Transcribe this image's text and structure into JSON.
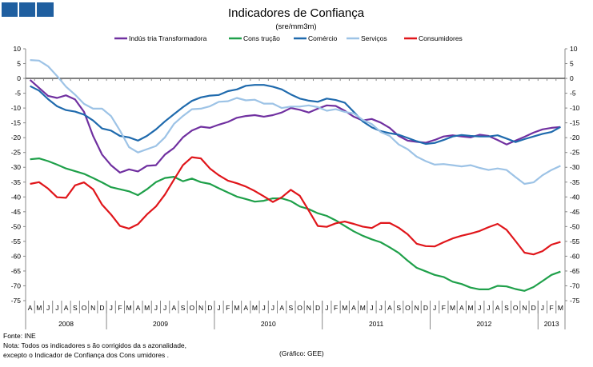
{
  "logo": {
    "color": "#1f5fa0"
  },
  "chart_data": {
    "type": "line",
    "title": "Indicadores de Confiança",
    "subtitle": "(sre/mm3m)",
    "xlabel": "",
    "ylabel": "",
    "ylim": [
      -75,
      10
    ],
    "yticks": [
      10,
      5,
      0,
      -5,
      -10,
      -15,
      -20,
      -25,
      -30,
      -35,
      -40,
      -45,
      -50,
      -55,
      -60,
      -65,
      -70,
      -75
    ],
    "legend_position": "top-center",
    "months": [
      "A",
      "M",
      "J",
      "J",
      "A",
      "S",
      "O",
      "N",
      "D",
      "J",
      "F",
      "M",
      "A",
      "M",
      "J",
      "J",
      "A",
      "S",
      "O",
      "N",
      "D",
      "J",
      "F",
      "M",
      "A",
      "M",
      "J",
      "J",
      "A",
      "S",
      "O",
      "N",
      "D",
      "J",
      "F",
      "M",
      "A",
      "M",
      "J",
      "J",
      "A",
      "S",
      "O",
      "N",
      "D",
      "J",
      "F",
      "M",
      "A",
      "M",
      "J",
      "J",
      "A",
      "S",
      "O",
      "N",
      "D",
      "J",
      "F",
      "M"
    ],
    "years": [
      {
        "label": "2008",
        "start": 0,
        "count": 9
      },
      {
        "label": "2009",
        "start": 9,
        "count": 12
      },
      {
        "label": "2010",
        "start": 21,
        "count": 12
      },
      {
        "label": "2011",
        "start": 33,
        "count": 12
      },
      {
        "label": "2012",
        "start": 45,
        "count": 12
      },
      {
        "label": "2013",
        "start": 57,
        "count": 3
      }
    ],
    "series": [
      {
        "name": "Indús tria Transformadora",
        "color": "#7030a0",
        "values": [
          -0.5,
          -3.2,
          -5.9,
          -6.6,
          -5.7,
          -7.1,
          -11.3,
          -19.4,
          -25.7,
          -29.3,
          -31.8,
          -30.7,
          -31.4,
          -29.5,
          -29.3,
          -25.7,
          -23.5,
          -19.9,
          -17.6,
          -16.3,
          -16.7,
          -15.6,
          -14.7,
          -13.3,
          -12.7,
          -12.4,
          -12.9,
          -12.4,
          -11.5,
          -10,
          -10.6,
          -11.5,
          -10.2,
          -9.1,
          -9.3,
          -10.9,
          -12.9,
          -14.2,
          -13.7,
          -14.9,
          -16.7,
          -19.4,
          -21,
          -21.4,
          -21.7,
          -20.8,
          -19.6,
          -19.2,
          -19.6,
          -19.9,
          -19,
          -19.4,
          -20.8,
          -22.3,
          -21,
          -19.7,
          -18.3,
          -17.2,
          -16.7,
          -16.4
        ]
      },
      {
        "name": "Cons trução",
        "color": "#1fa04a",
        "values": [
          -27.3,
          -27,
          -27.9,
          -29.1,
          -30.4,
          -31.3,
          -32.2,
          -33.6,
          -35.1,
          -36.7,
          -37.4,
          -38.1,
          -39.4,
          -37.4,
          -35,
          -33.6,
          -33.2,
          -34.7,
          -33.8,
          -35,
          -35.6,
          -37.1,
          -38.5,
          -39.9,
          -40.7,
          -41.6,
          -41.3,
          -40.5,
          -40.5,
          -41.4,
          -43.2,
          -44.1,
          -45.5,
          -46.4,
          -47.9,
          -49.8,
          -51.6,
          -53.1,
          -54.3,
          -55.3,
          -57,
          -58.9,
          -61.5,
          -63.9,
          -65.1,
          -66.3,
          -67,
          -68.6,
          -69.4,
          -70.6,
          -71.2,
          -71.2,
          -70,
          -70.2,
          -71.1,
          -71.7,
          -70.4,
          -68.4,
          -66.3,
          -65.2
        ]
      },
      {
        "name": "Comércio",
        "color": "#1f6aad",
        "values": [
          -2.6,
          -4.1,
          -7,
          -9.4,
          -10.7,
          -11.2,
          -12.2,
          -14.2,
          -16.9,
          -17.6,
          -19.4,
          -19.9,
          -21,
          -19.4,
          -17.2,
          -14.5,
          -12.1,
          -9.7,
          -7.6,
          -6.4,
          -5.8,
          -5.6,
          -4.3,
          -3.7,
          -2.5,
          -2.2,
          -2.2,
          -2.8,
          -3.7,
          -5.4,
          -6.8,
          -7.5,
          -7.9,
          -6.8,
          -7.3,
          -8.2,
          -11.3,
          -14.5,
          -16.5,
          -17.8,
          -18.5,
          -19,
          -20.1,
          -21.2,
          -22.1,
          -21.8,
          -20.8,
          -19.6,
          -19.1,
          -19.4,
          -19.6,
          -19.6,
          -19.2,
          -20.3,
          -21.5,
          -20.5,
          -19.6,
          -18.7,
          -18.1,
          -16.4
        ]
      },
      {
        "name": "Serviços",
        "color": "#9dc3e6",
        "values": [
          6.2,
          6,
          4.1,
          0.8,
          -2.8,
          -5.5,
          -8.6,
          -10.2,
          -10.2,
          -12.7,
          -17.6,
          -23.2,
          -25,
          -23.9,
          -22.8,
          -19.9,
          -15.4,
          -12.7,
          -10.4,
          -10.2,
          -9.4,
          -7.9,
          -7.7,
          -6.6,
          -7.4,
          -7.2,
          -8.5,
          -8.5,
          -10,
          -9.5,
          -9.5,
          -9.1,
          -9.7,
          -10.9,
          -10.4,
          -11.3,
          -11.8,
          -14,
          -15.4,
          -18.1,
          -19.4,
          -22.3,
          -23.9,
          -26.4,
          -27.9,
          -29.1,
          -28.9,
          -29.3,
          -29.7,
          -29.3,
          -30.2,
          -30.9,
          -30.4,
          -30.9,
          -33.3,
          -35.6,
          -35.1,
          -32.7,
          -30.9,
          -29.5
        ]
      },
      {
        "name": "Consumidores",
        "color": "#e0161b",
        "values": [
          -35.6,
          -35,
          -37.2,
          -40.1,
          -40.3,
          -36.1,
          -35.1,
          -37.4,
          -42.6,
          -45.9,
          -49.8,
          -50.7,
          -49.2,
          -45.9,
          -43.2,
          -39.2,
          -34.2,
          -29.3,
          -26.6,
          -27,
          -30.4,
          -32.7,
          -34.5,
          -35.4,
          -36.5,
          -38,
          -39.8,
          -41.7,
          -40.1,
          -37.6,
          -39.6,
          -44.6,
          -49.8,
          -50.1,
          -48.9,
          -48.3,
          -49.1,
          -50,
          -50.5,
          -48.8,
          -48.8,
          -50.4,
          -52.6,
          -55.8,
          -56.6,
          -56.7,
          -55.3,
          -54,
          -53.1,
          -52.4,
          -51.5,
          -50.2,
          -49.1,
          -51.1,
          -54.9,
          -58.8,
          -59.4,
          -58.3,
          -56.1,
          -55.2
        ]
      }
    ]
  },
  "footer": {
    "source": "Fonte: INE",
    "note1": "Nota: Todos os indicadores s ão corrigidos da s azonalidade,",
    "note2": "excepto o Indicador de Confiança dos Cons umidores .",
    "credit": "(Gráfico: GEE)"
  }
}
